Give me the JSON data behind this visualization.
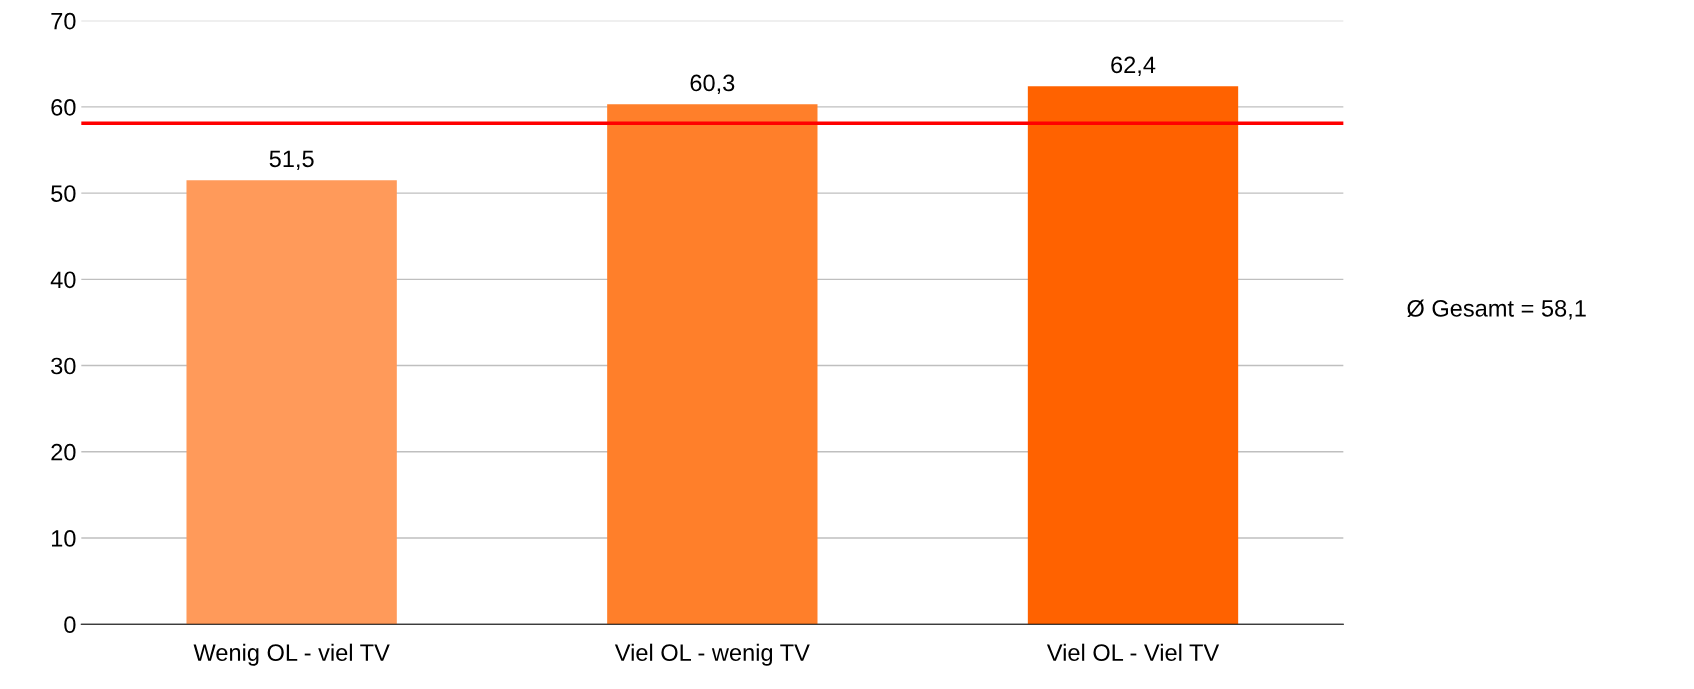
{
  "chart_data": {
    "type": "bar",
    "categories": [
      "Wenig OL - viel TV",
      "Viel OL - wenig TV",
      "Viel OL - Viel TV"
    ],
    "values": [
      51.5,
      60.3,
      62.4
    ],
    "colors": [
      "#ff9a5a",
      "#ff7f2a",
      "#ff6200"
    ],
    "value_labels": [
      "51,5",
      "60,3",
      "62,4"
    ],
    "ylim": [
      0,
      70
    ],
    "yticks": [
      0,
      10,
      20,
      30,
      40,
      50,
      60,
      70
    ],
    "grid": "y",
    "annotations": [
      "Ø Gesamt = 58,1"
    ],
    "ref_lines": [
      {
        "axis": "y",
        "value": 58.1,
        "color": "#ff0000",
        "line_style": "solid"
      }
    ]
  }
}
